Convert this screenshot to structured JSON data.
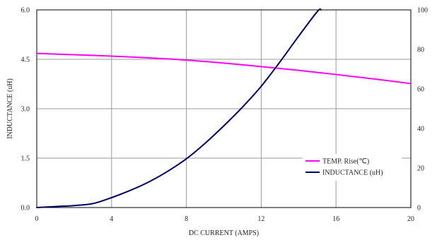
{
  "chart_data": {
    "type": "line",
    "xlabel": "DC CURRENT (AMPS)",
    "ylabel": "INDUCTANCE (uH)",
    "xlim": [
      0,
      20
    ],
    "ylim": [
      0,
      6
    ],
    "y2lim": [
      0,
      100
    ],
    "xticks": [
      "0",
      "4",
      "8",
      "12",
      "16",
      "20"
    ],
    "yticks": [
      "0.0",
      "1.5",
      "3.0",
      "4.5",
      "6.0"
    ],
    "y2ticks": [
      "0",
      "20",
      "40",
      "60",
      "80",
      "100"
    ],
    "grid": true,
    "legend_position": "bottom-right",
    "series": [
      {
        "name": "TEMP. Rise(℃)",
        "axis": "right",
        "color": "#ff00ff",
        "x": [
          0,
          2,
          4,
          6,
          8,
          10,
          12,
          14,
          16,
          18,
          20
        ],
        "y": [
          78,
          77.3,
          76.6,
          75.7,
          74.6,
          73.1,
          71.3,
          69.4,
          67.3,
          65.1,
          62.7
        ]
      },
      {
        "name": "INDUCTANCE (uH)",
        "axis": "left",
        "color": "#000066",
        "x": [
          0,
          1,
          2,
          3,
          4,
          5,
          6,
          7,
          8,
          9,
          10,
          11,
          12,
          13,
          14,
          15,
          15.2
        ],
        "y": [
          0,
          0.03,
          0.06,
          0.12,
          0.3,
          0.52,
          0.78,
          1.1,
          1.48,
          1.95,
          2.48,
          3.05,
          3.68,
          4.42,
          5.2,
          5.95,
          6.0
        ]
      }
    ]
  }
}
